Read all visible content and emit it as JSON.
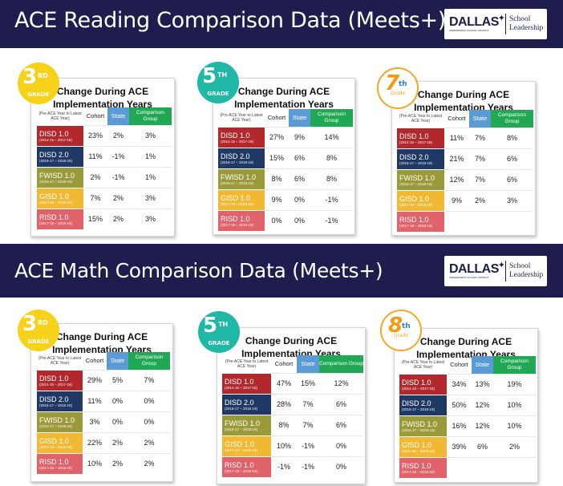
{
  "reading": {
    "title": "ACE Reading Comparison Data (Meets+)",
    "logo": {
      "word": "DALLAS",
      "sub": "INDEPENDENT SCHOOL DISTRICT",
      "right_line1": "School",
      "right_line2": "Leadership"
    },
    "cards": [
      {
        "badge": {
          "num": "3",
          "sup": "RD",
          "grade": "GRADE"
        },
        "title_line1": "Change During ACE",
        "title_line2": "Implementation Years",
        "headers": {
          "pre": "(Pre-ACE Year to Latest ACE Year)",
          "cohort": "Cohort",
          "state": "State",
          "comparison": "Comparison Group"
        },
        "rows": [
          {
            "name": "DISD 1.0",
            "years": "(2014-15 – 2017-18)",
            "cohort": "23%",
            "state": "2%",
            "comparison": "3%"
          },
          {
            "name": "DISD 2.0",
            "years": "(2016-17 – 2018-19)",
            "cohort": "11%",
            "state": "-1%",
            "comparison": "1%"
          },
          {
            "name": "FWISD 1.0",
            "years": "(2016-17 – 2018-19)",
            "cohort": "2%",
            "state": "-1%",
            "comparison": "1%"
          },
          {
            "name": "GISD 1.0",
            "years": "(2017-18 – 2018-19)",
            "cohort": "7%",
            "state": "2%",
            "comparison": "3%"
          },
          {
            "name": "RISD 1.0",
            "years": "(2017-18 – 2018-19)",
            "cohort": "15%",
            "state": "2%",
            "comparison": "3%"
          }
        ]
      },
      {
        "badge": {
          "num": "5",
          "sup": "TH",
          "grade": "GRADE"
        },
        "title_line1": "Change During ACE",
        "title_line2": "Implementation Years",
        "headers": {
          "pre": "(Pre-ACE Year to Latest ACE Year)",
          "cohort": "Cohort",
          "state": "State",
          "comparison": "Comparison Group"
        },
        "rows": [
          {
            "name": "DISD 1.0",
            "years": "(2014-15 – 2017-18)",
            "cohort": "27%",
            "state": "9%",
            "comparison": "14%"
          },
          {
            "name": "DISD 2.0",
            "years": "(2016-17 – 2018-19)",
            "cohort": "15%",
            "state": "6%",
            "comparison": "8%"
          },
          {
            "name": "FWISD 1.0",
            "years": "(2016-17 – 2018-19)",
            "cohort": "8%",
            "state": "6%",
            "comparison": "8%"
          },
          {
            "name": "GISD 1.0",
            "years": "(2017-18 – 2018-19)",
            "cohort": "9%",
            "state": "0%",
            "comparison": "-1%"
          },
          {
            "name": "RISD 1.0",
            "years": "(2017-18 – 2018-19)",
            "cohort": "0%",
            "state": "0%",
            "comparison": "-1%"
          }
        ]
      },
      {
        "badge": {
          "num": "7",
          "sup": "th",
          "grade": "Grade"
        },
        "title_line1": "Change During ACE",
        "title_line2": "Implementation Years",
        "headers": {
          "pre": "(Pre-ACE Year to Latest ACE Year)",
          "cohort": "Cohort",
          "state": "State",
          "comparison": "Comparison Group"
        },
        "rows": [
          {
            "name": "DISD 1.0",
            "years": "(2014-15 – 2017-18)",
            "cohort": "11%",
            "state": "7%",
            "comparison": "8%"
          },
          {
            "name": "DISD 2.0",
            "years": "(2016-17 – 2018-19)",
            "cohort": "21%",
            "state": "7%",
            "comparison": "6%"
          },
          {
            "name": "FWISD 1.0",
            "years": "(2016-17 – 2018-19)",
            "cohort": "12%",
            "state": "7%",
            "comparison": "6%"
          },
          {
            "name": "GISD 1.0",
            "years": "(2017-18 – 2018-19)",
            "cohort": "9%",
            "state": "2%",
            "comparison": "3%"
          },
          {
            "name": "RISD 1.0",
            "years": "(2017-18 – 2018-19)",
            "cohort": "",
            "state": "",
            "comparison": ""
          }
        ]
      }
    ]
  },
  "math": {
    "title": "ACE Math Comparison Data (Meets+)",
    "logo": {
      "word": "DALLAS",
      "sub": "INDEPENDENT SCHOOL DISTRICT",
      "right_line1": "School",
      "right_line2": "Leadership"
    },
    "cards": [
      {
        "badge": {
          "num": "3",
          "sup": "RD",
          "grade": "GRADE"
        },
        "title_line1": "Change During ACE",
        "title_line2": "Implementation Years",
        "headers": {
          "pre": "(Pre-ACE Year to Latest ACE Year)",
          "cohort": "Cohort",
          "state": "State",
          "comparison": "Comparison Group"
        },
        "rows": [
          {
            "name": "DISD 1.0",
            "years": "(2014-15 – 2017-18)",
            "cohort": "29%",
            "state": "5%",
            "comparison": "7%"
          },
          {
            "name": "DISD 2.0",
            "years": "(2016-17 – 2018-19)",
            "cohort": "11%",
            "state": "0%",
            "comparison": "0%"
          },
          {
            "name": "FWISD 1.0",
            "years": "(2016-17 – 2018-19)",
            "cohort": "3%",
            "state": "0%",
            "comparison": "0%"
          },
          {
            "name": "GISD 1.0",
            "years": "(2017-18 – 2018-19)",
            "cohort": "22%",
            "state": "2%",
            "comparison": "2%"
          },
          {
            "name": "RISD 1.0",
            "years": "(2017-18 – 2018-19)",
            "cohort": "10%",
            "state": "2%",
            "comparison": "2%"
          }
        ]
      },
      {
        "badge": {
          "num": "5",
          "sup": "TH",
          "grade": "GRADE"
        },
        "title_line1": "Change During ACE",
        "title_line2": "Implementation Years",
        "headers": {
          "pre": "(Pre-ACE Year to Latest ACE Year)",
          "cohort": "Cohort",
          "state": "State",
          "comparison": "Comparison Group"
        },
        "rows": [
          {
            "name": "DISD 1.0",
            "years": "(2014-15 – 2017-18)",
            "cohort": "47%",
            "state": "15%",
            "comparison": "12%"
          },
          {
            "name": "DISD 2.0",
            "years": "(2016-17 – 2018-19)",
            "cohort": "28%",
            "state": "7%",
            "comparison": "6%"
          },
          {
            "name": "FWISD 1.0",
            "years": "(2016-17 – 2018-19)",
            "cohort": "8%",
            "state": "7%",
            "comparison": "6%"
          },
          {
            "name": "GISD 1.0",
            "years": "(2017-18 – 2018-19)",
            "cohort": "10%",
            "state": "-1%",
            "comparison": "0%"
          },
          {
            "name": "RISD 1.0",
            "years": "(2017-18 – 2018-19)",
            "cohort": "-1%",
            "state": "-1%",
            "comparison": "0%"
          }
        ]
      },
      {
        "badge": {
          "num": "8",
          "sup": "th",
          "grade": "Grade"
        },
        "title_line1": "Change During ACE",
        "title_line2": "Implementation Years",
        "headers": {
          "pre": "(Pre-ACE Year to Latest ACE Year)",
          "cohort": "Cohort",
          "state": "State",
          "comparison": "Comparison Group"
        },
        "rows": [
          {
            "name": "DISD 1.0",
            "years": "(2014-15 – 2017-18)",
            "cohort": "34%",
            "state": "13%",
            "comparison": "19%"
          },
          {
            "name": "DISD 2.0",
            "years": "(2016-17 – 2018-19)",
            "cohort": "50%",
            "state": "12%",
            "comparison": "10%"
          },
          {
            "name": "FWISD 1.0",
            "years": "(2016-17 – 2018-19)",
            "cohort": "16%",
            "state": "12%",
            "comparison": "10%"
          },
          {
            "name": "GISD 1.0",
            "years": "(2017-18 – 2018-19)",
            "cohort": "39%",
            "state": "6%",
            "comparison": "2%"
          },
          {
            "name": "RISD 1.0",
            "years": "(2017-18 – 2018-19)",
            "cohort": "",
            "state": "",
            "comparison": ""
          }
        ]
      }
    ]
  },
  "colors": {
    "banner": "#1e1d4e",
    "disd1": "#b3282d",
    "disd2": "#1f3864",
    "fwisd": "#9a9a3a",
    "gisd": "#f1b933",
    "risd": "#e0626b",
    "state_header": "#5b9bd5",
    "comparison_header": "#21a854",
    "badge_yellow": "#f7d21a",
    "badge_teal": "#1fb7a6",
    "badge_orange": "#f5a623"
  }
}
